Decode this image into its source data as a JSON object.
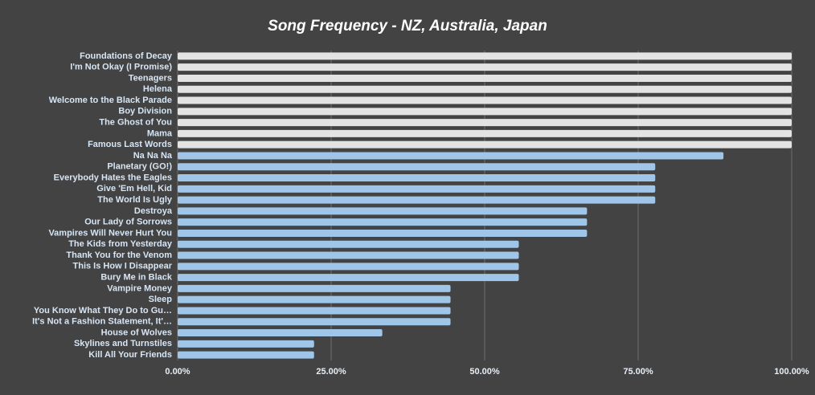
{
  "chart_data": {
    "type": "barh",
    "title": "Song Frequency - NZ, Australia, Japan",
    "categories": [
      "Foundations of Decay",
      "I'm Not Okay (I Promise)",
      "Teenagers",
      "Helena",
      "Welcome to the Black Parade",
      "Boy Division",
      "The Ghost of You",
      "Mama",
      "Famous Last Words",
      "Na Na Na",
      "Planetary (GO!)",
      "Everybody Hates the Eagles",
      "Give 'Em Hell, Kid",
      "The World Is Ugly",
      "Destroya",
      "Our Lady of Sorrows",
      "Vampires Will Never Hurt You",
      "The Kids from Yesterday",
      "Thank You for the Venom",
      "This Is How I Disappear",
      "Bury Me in Black",
      "Vampire Money",
      "Sleep",
      "You Know What They Do to Gu…",
      "It's Not a Fashion Statement, It'…",
      "House of Wolves",
      "Skylines and Turnstiles",
      "Kill All Your Friends"
    ],
    "values": [
      100,
      100,
      100,
      100,
      100,
      100,
      100,
      100,
      100,
      88.89,
      77.78,
      77.78,
      77.78,
      77.78,
      66.67,
      66.67,
      66.67,
      55.56,
      55.56,
      55.56,
      55.56,
      44.44,
      44.44,
      44.44,
      44.44,
      33.33,
      22.22,
      22.22
    ],
    "colors": [
      "#e3e3e3",
      "#e3e3e3",
      "#e3e3e3",
      "#e3e3e3",
      "#e3e3e3",
      "#e3e3e3",
      "#e3e3e3",
      "#e3e3e3",
      "#e3e3e3",
      "#9fc5e8",
      "#9fc5e8",
      "#9fc5e8",
      "#9fc5e8",
      "#9fc5e8",
      "#9fc5e8",
      "#9fc5e8",
      "#9fc5e8",
      "#9fc5e8",
      "#9fc5e8",
      "#9fc5e8",
      "#9fc5e8",
      "#9fc5e8",
      "#9fc5e8",
      "#9fc5e8",
      "#9fc5e8",
      "#9fc5e8",
      "#9fc5e8",
      "#9fc5e8"
    ],
    "xlim": [
      0,
      100
    ],
    "xticks": [
      {
        "value": 0,
        "label": "0.00%"
      },
      {
        "value": 25,
        "label": "25.00%"
      },
      {
        "value": 50,
        "label": "50.00%"
      },
      {
        "value": 75,
        "label": "75.00%"
      },
      {
        "value": 100,
        "label": "100.00%"
      }
    ],
    "grid": true
  }
}
